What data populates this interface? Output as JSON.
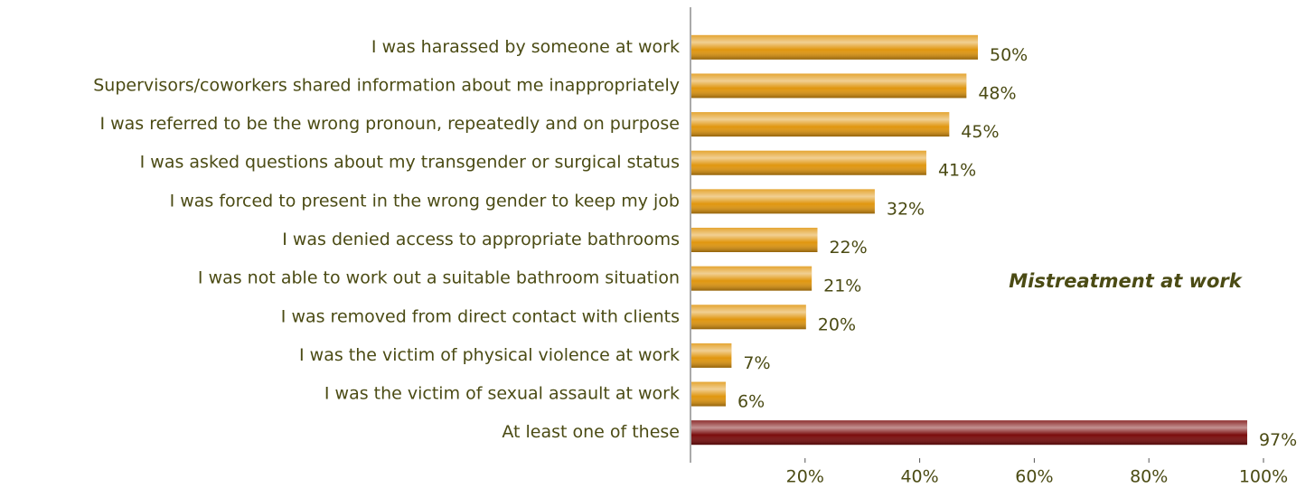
{
  "chart_data": {
    "type": "barh",
    "categories": [
      "I was harassed by someone at work",
      "Supervisors/coworkers shared information about me inappropriately",
      "I was referred to be the wrong pronoun, repeatedly and on purpose",
      "I was asked questions about my transgender or surgical status",
      "I was forced to present in the wrong gender to keep my job",
      "I was denied access to appropriate bathrooms",
      "I was not able to work out a suitable bathroom situation",
      "I was removed from  direct contact with clients",
      "I was the victim of physical violence at work",
      "I was the victim of sexual assault at work",
      "At least one of these"
    ],
    "values": [
      50,
      48,
      45,
      41,
      32,
      22,
      21,
      20,
      7,
      6,
      97
    ],
    "value_labels": [
      "50%",
      "48%",
      "45%",
      "41%",
      "32%",
      "22%",
      "21%",
      "20%",
      "7%",
      "6%",
      "97%"
    ],
    "colors": [
      "#e0960f",
      "#e0960f",
      "#e0960f",
      "#e0960f",
      "#e0960f",
      "#e0960f",
      "#e0960f",
      "#e0960f",
      "#e0960f",
      "#e0960f",
      "#7a0c0c"
    ],
    "xlim": [
      0,
      100
    ],
    "xticks": [
      {
        "value": 20,
        "label": "20%"
      },
      {
        "value": 40,
        "label": "40%"
      },
      {
        "value": 60,
        "label": "60%"
      },
      {
        "value": 80,
        "label": "80%"
      },
      {
        "value": 100,
        "label": "100%"
      }
    ],
    "annotation": "Mistreatment at work"
  }
}
